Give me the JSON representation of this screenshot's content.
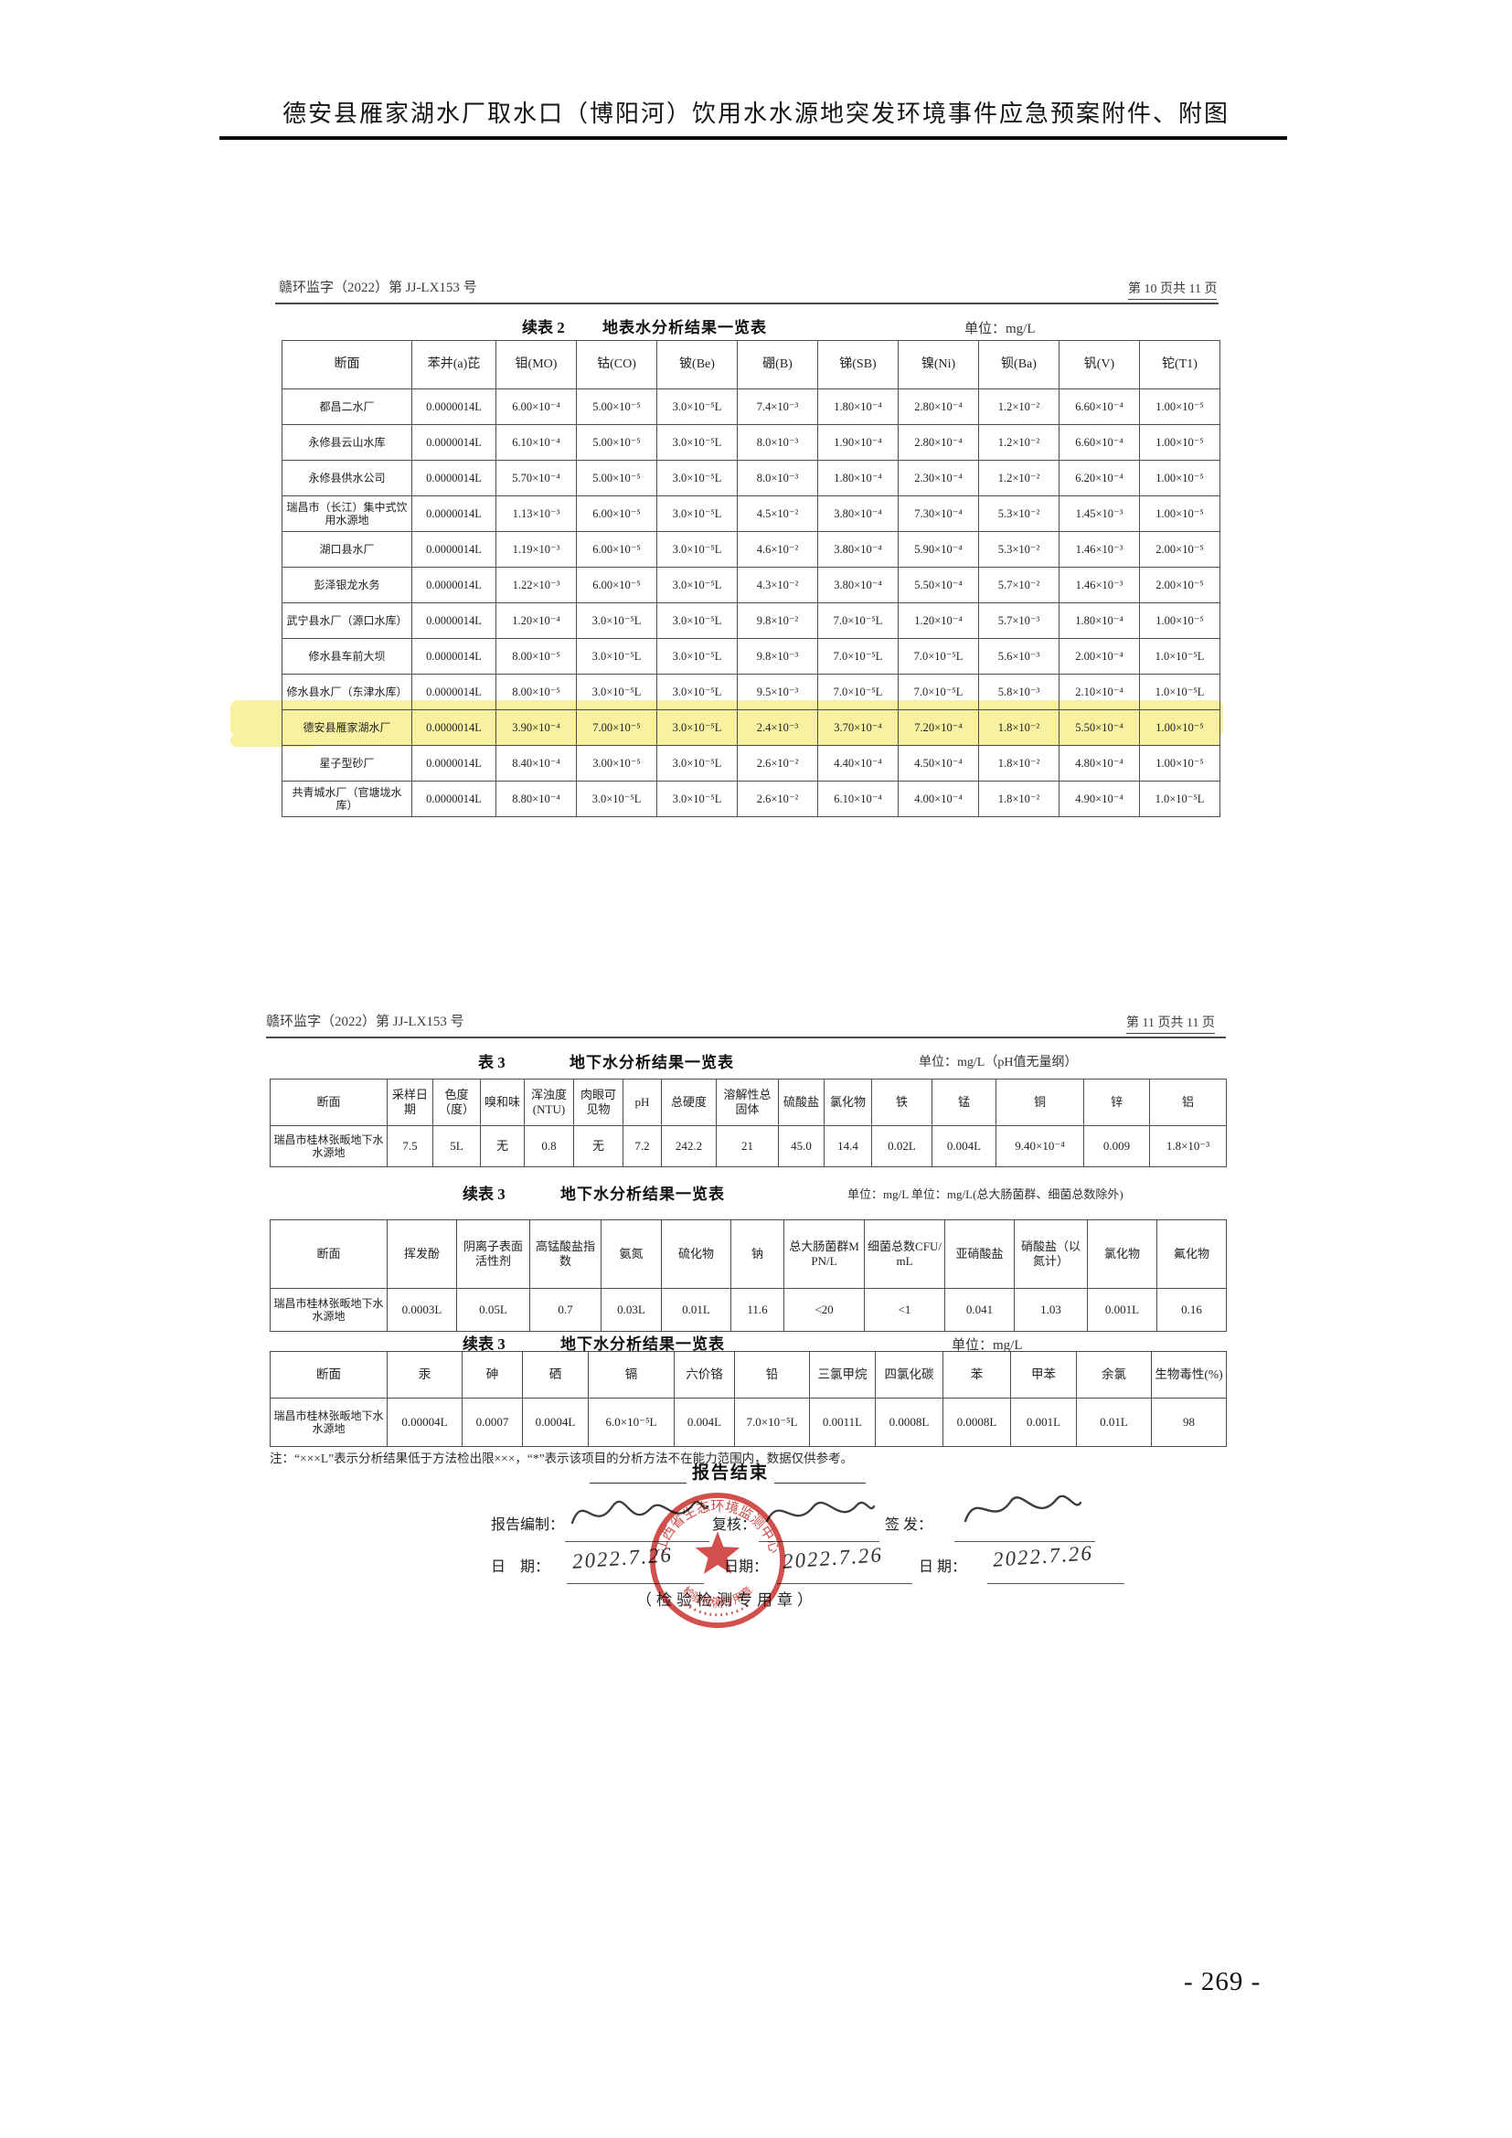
{
  "page": {
    "doc_title": "德安县雁家湖水厂取水口（博阳河）饮用水水源地突发环境事件应急预案附件、附图",
    "page_number": "- 269 -"
  },
  "section1": {
    "doc_code": "赣环监字（2022）第 JJ-LX153 号",
    "page_info": "第 10 页共 11 页",
    "table_label": "续表 2",
    "table_title": "地表水分析结果一览表",
    "unit": "单位：mg/L",
    "table": {
      "columns": [
        "断面",
        "苯并(a)芘",
        "钼(MO)",
        "钴(CO)",
        "铍(Be)",
        "硼(B)",
        "锑(SB)",
        "镍(Ni)",
        "钡(Ba)",
        "钒(V)",
        "铊(T1)"
      ],
      "rows": [
        {
          "name": "都昌二水厂",
          "highlight": false,
          "values": [
            "0.0000014L",
            "6.00×10⁻⁴",
            "5.00×10⁻⁵",
            "3.0×10⁻⁵L",
            "7.4×10⁻³",
            "1.80×10⁻⁴",
            "2.80×10⁻⁴",
            "1.2×10⁻²",
            "6.60×10⁻⁴",
            "1.00×10⁻⁵"
          ]
        },
        {
          "name": "永修县云山水库",
          "highlight": false,
          "values": [
            "0.0000014L",
            "6.10×10⁻⁴",
            "5.00×10⁻⁵",
            "3.0×10⁻⁵L",
            "8.0×10⁻³",
            "1.90×10⁻⁴",
            "2.80×10⁻⁴",
            "1.2×10⁻²",
            "6.60×10⁻⁴",
            "1.00×10⁻⁵"
          ]
        },
        {
          "name": "永修县供水公司",
          "highlight": false,
          "values": [
            "0.0000014L",
            "5.70×10⁻⁴",
            "5.00×10⁻⁵",
            "3.0×10⁻⁵L",
            "8.0×10⁻³",
            "1.80×10⁻⁴",
            "2.30×10⁻⁴",
            "1.2×10⁻²",
            "6.20×10⁻⁴",
            "1.00×10⁻⁵"
          ]
        },
        {
          "name": "瑞昌市（长江）集中式饮用水源地",
          "highlight": false,
          "values": [
            "0.0000014L",
            "1.13×10⁻³",
            "6.00×10⁻⁵",
            "3.0×10⁻⁵L",
            "4.5×10⁻²",
            "3.80×10⁻⁴",
            "7.30×10⁻⁴",
            "5.3×10⁻²",
            "1.45×10⁻³",
            "1.00×10⁻⁵"
          ]
        },
        {
          "name": "湖口县水厂",
          "highlight": false,
          "values": [
            "0.0000014L",
            "1.19×10⁻³",
            "6.00×10⁻⁵",
            "3.0×10⁻⁵L",
            "4.6×10⁻²",
            "3.80×10⁻⁴",
            "5.90×10⁻⁴",
            "5.3×10⁻²",
            "1.46×10⁻³",
            "2.00×10⁻⁵"
          ]
        },
        {
          "name": "彭泽银龙水务",
          "highlight": false,
          "values": [
            "0.0000014L",
            "1.22×10⁻³",
            "6.00×10⁻⁵",
            "3.0×10⁻⁵L",
            "4.3×10⁻²",
            "3.80×10⁻⁴",
            "5.50×10⁻⁴",
            "5.7×10⁻²",
            "1.46×10⁻³",
            "2.00×10⁻⁵"
          ]
        },
        {
          "name": "武宁县水厂（源口水库）",
          "highlight": false,
          "values": [
            "0.0000014L",
            "1.20×10⁻⁴",
            "3.0×10⁻⁵L",
            "3.0×10⁻⁵L",
            "9.8×10⁻²",
            "7.0×10⁻⁵L",
            "1.20×10⁻⁴",
            "5.7×10⁻³",
            "1.80×10⁻⁴",
            "1.00×10⁻⁵"
          ]
        },
        {
          "name": "修水县车前大坝",
          "highlight": false,
          "values": [
            "0.0000014L",
            "8.00×10⁻⁵",
            "3.0×10⁻⁵L",
            "3.0×10⁻⁵L",
            "9.8×10⁻³",
            "7.0×10⁻⁵L",
            "7.0×10⁻⁵L",
            "5.6×10⁻³",
            "2.00×10⁻⁴",
            "1.0×10⁻⁵L"
          ]
        },
        {
          "name": "修水县水厂（东津水库）",
          "highlight": false,
          "values": [
            "0.0000014L",
            "8.00×10⁻⁵",
            "3.0×10⁻⁵L",
            "3.0×10⁻⁵L",
            "9.5×10⁻³",
            "7.0×10⁻⁵L",
            "7.0×10⁻⁵L",
            "5.8×10⁻³",
            "2.10×10⁻⁴",
            "1.0×10⁻⁵L"
          ]
        },
        {
          "name": "德安县雁家湖水厂",
          "highlight": true,
          "values": [
            "0.0000014L",
            "3.90×10⁻⁴",
            "7.00×10⁻⁵",
            "3.0×10⁻⁵L",
            "2.4×10⁻³",
            "3.70×10⁻⁴",
            "7.20×10⁻⁴",
            "1.8×10⁻²",
            "5.50×10⁻⁴",
            "1.00×10⁻⁵"
          ]
        },
        {
          "name": "星子型砂厂",
          "highlight": false,
          "values": [
            "0.0000014L",
            "8.40×10⁻⁴",
            "3.00×10⁻⁵",
            "3.0×10⁻⁵L",
            "2.6×10⁻²",
            "4.40×10⁻⁴",
            "4.50×10⁻⁴",
            "1.8×10⁻²",
            "4.80×10⁻⁴",
            "1.00×10⁻⁵"
          ]
        },
        {
          "name": "共青城水厂（官塘垅水库）",
          "highlight": false,
          "values": [
            "0.0000014L",
            "8.80×10⁻⁴",
            "3.0×10⁻⁵L",
            "3.0×10⁻⁵L",
            "2.6×10⁻²",
            "6.10×10⁻⁴",
            "4.00×10⁻⁴",
            "1.8×10⁻²",
            "4.90×10⁻⁴",
            "1.0×10⁻⁵L"
          ]
        }
      ]
    }
  },
  "section2": {
    "doc_code": "赣环监字（2022）第 JJ-LX153 号",
    "page_info": "第 11 页共 11 页",
    "table3": {
      "label": "表 3",
      "title": "地下水分析结果一览表",
      "unit": "单位：mg/L（pH值无量纲）",
      "columns": [
        "断面",
        "采样日期",
        "色度（度）",
        "嗅和味",
        "浑浊度(NTU)",
        "肉眼可见物",
        "pH",
        "总硬度",
        "溶解性总固体",
        "硫酸盐",
        "氯化物",
        "铁",
        "锰",
        "铜",
        "锌",
        "铝"
      ],
      "rows": [
        {
          "name": "瑞昌市桂林张畈地下水水源地",
          "highlight": false,
          "values": [
            "7.5",
            "5L",
            "无",
            "0.8",
            "无",
            "7.2",
            "242.2",
            "21",
            "45.0",
            "14.4",
            "0.02L",
            "0.004L",
            "9.40×10⁻⁴",
            "0.009",
            "1.8×10⁻³"
          ]
        }
      ]
    },
    "table3b": {
      "label": "续表 3",
      "title": "地下水分析结果一览表",
      "unit": "单位：mg/L 单位：mg/L(总大肠菌群、细菌总数除外)",
      "columns": [
        "断面",
        "挥发酚",
        "阴离子表面活性剂",
        "高锰酸盐指数",
        "氨氮",
        "硫化物",
        "钠",
        "总大肠菌群MPN/L",
        "细菌总数CFU/mL",
        "亚硝酸盐",
        "硝酸盐（以氮计）",
        "氯化物",
        "氟化物"
      ],
      "rows": [
        {
          "name": "瑞昌市桂林张畈地下水水源地",
          "highlight": false,
          "values": [
            "0.0003L",
            "0.05L",
            "0.7",
            "0.03L",
            "0.01L",
            "11.6",
            "<20",
            "<1",
            "0.041",
            "1.03",
            "0.001L",
            "0.16"
          ]
        }
      ]
    },
    "table3c": {
      "label": "续表 3",
      "title": "地下水分析结果一览表",
      "unit": "单位：mg/L",
      "columns": [
        "断面",
        "汞",
        "砷",
        "硒",
        "镉",
        "六价铬",
        "铅",
        "三氯甲烷",
        "四氯化碳",
        "苯",
        "甲苯",
        "余氯",
        "生物毒性(%)"
      ],
      "rows": [
        {
          "name": "瑞昌市桂林张畈地下水水源地",
          "highlight": false,
          "values": [
            "0.00004L",
            "0.0007",
            "0.0004L",
            "6.0×10⁻⁵L",
            "0.004L",
            "7.0×10⁻⁵L",
            "0.0011L",
            "0.0008L",
            "0.0008L",
            "0.001L",
            "0.01L",
            "98"
          ]
        }
      ]
    },
    "note": "注：“×××L”表示分析结果低于方法检出限×××，“*”表示该项目的分析方法不在能力范围内，数据仅供参考。",
    "report_end": "报告结束",
    "sign": {
      "prepared_label": "报告编制：",
      "review_label": "复核：",
      "issue_label": "签 发：",
      "date_label_1": "日　期：",
      "date_1": "2022.7.26",
      "date_label_2": "日期：",
      "date_2": "2022.7.26",
      "date_label_3": "日 期：",
      "date_3": "2022.7.26",
      "stamp_caption": "（检验检测专用章）"
    },
    "stamp": {
      "arc_text": "江西省生态环境监测中心",
      "seal_text": "检验检测专用章",
      "seal_number": "(2)",
      "color": "#c9302c"
    }
  },
  "colors": {
    "highlight_yellow": "#f8f19e",
    "stamp_red": "#c9302c"
  }
}
